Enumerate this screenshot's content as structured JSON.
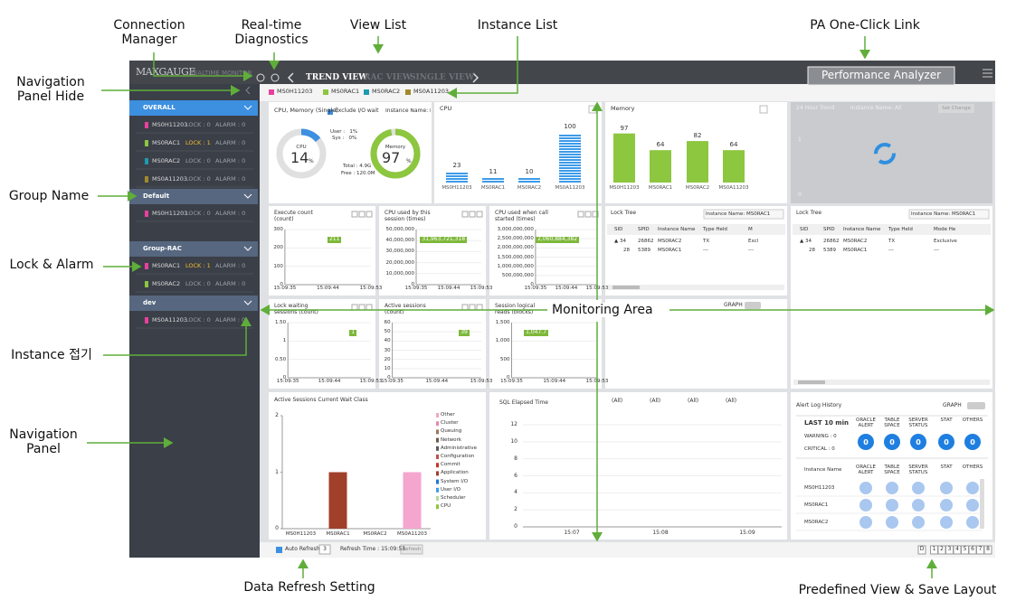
{
  "annotations": {
    "connection_manager": "Connection Manager",
    "realtime_diagnostics": "Real-time Diagnostics",
    "view_list": "View List",
    "instance_list": "Instance List",
    "pa_link": "PA One-Click Link",
    "nav_hide": "Navigation Panel Hide",
    "group_name": "Group Name",
    "lock_alarm": "Lock & Alarm",
    "instance_fold": "Instance 접기",
    "nav_panel": "Navigation Panel",
    "monitoring_area": "Monitoring Area",
    "refresh": "Data Refresh Setting",
    "predefined": "Predefined View & Save Layout"
  },
  "header": {
    "brand": "MAXGAUGE",
    "subtitle": "REALTIME MONITOR",
    "tabs": [
      "TREND VIEW",
      "RAC VIEW",
      "SINGLE VIEW"
    ],
    "pa_button": "Performance Analyzer"
  },
  "instances": [
    {
      "name": "MS0H11203",
      "color": "#e8409e"
    },
    {
      "name": "MS0RAC1",
      "color": "#8dc63f"
    },
    {
      "name": "MS0RAC2",
      "color": "#1e9bb0"
    },
    {
      "name": "MS0A11203",
      "color": "#a08a2b"
    }
  ],
  "nav": {
    "groups": [
      {
        "name": "OVERALL",
        "color": "#3d8fe0",
        "items": [
          {
            "name": "MS0H11203",
            "color": "#e8409e",
            "lock": "LOCK : 0",
            "alarm": "ALARM : 0",
            "highlight": false
          },
          {
            "name": "MS0RAC1",
            "color": "#8dc63f",
            "lock": "LOCK : 1",
            "alarm": "ALARM : 0",
            "highlight": true
          },
          {
            "name": "MS0RAC2",
            "color": "#1e9bb0",
            "lock": "LOCK : 0",
            "alarm": "ALARM : 0",
            "highlight": false
          },
          {
            "name": "MS0A11203",
            "color": "#a08a2b",
            "lock": "LOCK : 0",
            "alarm": "ALARM : 0",
            "highlight": false
          }
        ]
      },
      {
        "name": "Default",
        "color": "#56677f",
        "items": [
          {
            "name": "MS0H11203",
            "color": "#e8409e",
            "lock": "LOCK : 0",
            "alarm": "ALARM : 0",
            "highlight": false
          }
        ]
      },
      {
        "name": "Group-RAC",
        "color": "#56677f",
        "items": [
          {
            "name": "MS0RAC1",
            "color": "#e8409e",
            "lock": "LOCK : 1",
            "alarm": "ALARM : 0",
            "highlight": true
          },
          {
            "name": "MS0RAC2",
            "color": "#8dc63f",
            "lock": "LOCK : 0",
            "alarm": "ALARM : 0",
            "highlight": false
          }
        ]
      },
      {
        "name": "dev",
        "color": "#56677f",
        "items": [
          {
            "name": "MS0A11203",
            "color": "#e8409e",
            "lock": "LOCK : 0",
            "alarm": "ALARM : 0",
            "highlight": false
          }
        ]
      }
    ]
  },
  "cpu_memory": {
    "title": "CPU, Memory (Single)",
    "exclude": "Exclude I/O wait",
    "instance": "Instance Name: M",
    "cpu_label": "CPU",
    "cpu_value": 14,
    "memory_label": "Memory",
    "memory_value": 97,
    "unit": "%",
    "user": "User :   1%",
    "sys": "Sys :   0%",
    "total": "Total : 4.9G",
    "free": "Free : 120.0M"
  },
  "cpu_bars": {
    "title": "CPU",
    "categories": [
      "MS0H11203",
      "MS0RAC1",
      "MS0RAC2",
      "MS0A11203"
    ],
    "values": [
      23,
      11,
      10,
      100
    ],
    "color": "#3d9be9"
  },
  "memory_bars": {
    "title": "Memory",
    "categories": [
      "MS0H11203",
      "MS0RAC1",
      "MS0RAC2",
      "MS0A11203"
    ],
    "values": [
      97,
      64,
      82,
      64
    ],
    "color": "#8dc63f"
  },
  "trend24": {
    "title": "24 Hour Trend",
    "instance": "Instance Name: All",
    "button": "Set Change",
    "yticks": [
      "1",
      "0"
    ]
  },
  "small_charts": [
    {
      "title": "Execute count (count)",
      "yticks": [
        "300",
        "200",
        "100",
        "0"
      ],
      "xticks": [
        "15:09:35",
        "15:09:44",
        "15:09:53"
      ],
      "badge": "211"
    },
    {
      "title": "CPU used by this session (times)",
      "yticks": [
        "50,000,000",
        "40,000,000",
        "30,000,000",
        "20,000,000",
        "10,000,000",
        "0"
      ],
      "xticks": [
        "15:09:35",
        "15:09:44",
        "15:09:53"
      ],
      "badge": "31,963,721,318"
    },
    {
      "title": "CPU used when call started (times)",
      "yticks": [
        "3,000,000,000",
        "2,500,000,000",
        "2,000,000,000",
        "1,500,000,000",
        "1,000,000,000",
        "500,000,000",
        "0"
      ],
      "xticks": [
        "15:09:35",
        "15:09:44",
        "15:09:53"
      ],
      "badge": "2,060,884,382"
    },
    {
      "title": "Lock waiting sessions (count)",
      "yticks": [
        "1.50",
        "1",
        "0.50",
        "0"
      ],
      "xticks": [
        "15:09:35",
        "15:09:44",
        "15:09:53"
      ],
      "badge": "1"
    },
    {
      "title": "Active sessions (count)",
      "yticks": [
        "60",
        "50",
        "40",
        "30",
        "20",
        "10",
        "0"
      ],
      "xticks": [
        "15:09:35",
        "15:09:44",
        "15:09:53"
      ],
      "badge": "39"
    },
    {
      "title": "Session logical reads (blocks)",
      "yticks": [
        "1,500",
        "1,000",
        "500",
        "0"
      ],
      "xticks": [
        "15:09:35",
        "15:09:44",
        "15:09:53"
      ],
      "badge": "1,047.7"
    }
  ],
  "lock_trees": [
    {
      "title": "Lock Tree",
      "instance": "Instance Name: MS0RAC1",
      "columns": [
        "SID",
        "SPID",
        "Instance Name",
        "Type Held",
        "M"
      ],
      "rows": [
        [
          "▲ 34",
          "26862",
          "MS0RAC2",
          "TX",
          "Excl"
        ],
        [
          "28",
          "5389",
          "MS0RAC1",
          "---",
          "---"
        ]
      ]
    },
    {
      "title": "Lock Tree",
      "instance": "Instance Name: MS0RAC1",
      "columns": [
        "SID",
        "SPID",
        "Instance Name",
        "Type Held",
        "Mode He"
      ],
      "rows": [
        [
          "▲ 34",
          "26862",
          "MS0RAC2",
          "TX",
          "Exclusive"
        ],
        [
          "28",
          "5389",
          "MS0RAC1",
          "---",
          "---"
        ]
      ]
    }
  ],
  "graph_toggle": "GRAPH",
  "wait_class": {
    "title": "Active Sessions Current Wait Class",
    "ylim": [
      0,
      2
    ],
    "yticks": [
      0,
      1,
      2
    ],
    "categories": [
      "MS0H11203",
      "MS0RAC1",
      "MS0RAC2",
      "MS0A11203"
    ],
    "values": [
      0,
      1,
      0,
      1
    ],
    "colors": [
      "#e8409e",
      "#a0402a",
      "#1e9bb0",
      "#f4a6cf"
    ],
    "legend": [
      {
        "name": "Other",
        "color": "#f2a6c8"
      },
      {
        "name": "Cluster",
        "color": "#e88ab0"
      },
      {
        "name": "Queuing",
        "color": "#9b7a5a"
      },
      {
        "name": "Network",
        "color": "#6b5a4a"
      },
      {
        "name": "Administrative",
        "color": "#5a5a5a"
      },
      {
        "name": "Configuration",
        "color": "#c0504d"
      },
      {
        "name": "Commit",
        "color": "#c0392b"
      },
      {
        "name": "Application",
        "color": "#a0402a"
      },
      {
        "name": "System I/O",
        "color": "#1f77d0"
      },
      {
        "name": "User I/O",
        "color": "#3d9be9"
      },
      {
        "name": "Scheduler",
        "color": "#b5d99c"
      },
      {
        "name": "CPU",
        "color": "#8dc63f"
      }
    ]
  },
  "sql_elapsed": {
    "title": "SQL Elapsed Time",
    "filters": [
      "(All)",
      "(All)",
      "(All)",
      "(All)"
    ],
    "yticks": [
      "12",
      "10",
      "8",
      "6",
      "4",
      "2",
      "0"
    ],
    "xticks": [
      "15:07",
      "15:08",
      "15:09"
    ]
  },
  "alert_log": {
    "title": "Alert Log History",
    "graph": "GRAPH",
    "period": "LAST 10 min",
    "columns": [
      "ORACLE ALERT",
      "TABLE SPACE",
      "SERVER STATUS",
      "STAT",
      "OTHERS"
    ],
    "warning": "WARNING : 0",
    "critical": "CRITICAL : 0",
    "counts": [
      "0",
      "0",
      "0",
      "0",
      "0"
    ],
    "instance_header": "Instance Name",
    "rows": [
      "MS0H11203",
      "MS0RAC1",
      "MS0RAC2"
    ]
  },
  "footer": {
    "auto_refresh": "Auto Refresh",
    "interval": "3",
    "refresh_time": "Refresh Time : 15:09:53",
    "refresh_button": "Refresh",
    "layouts": [
      "D",
      "1",
      "2",
      "3",
      "4",
      "5",
      "6",
      "7",
      "8"
    ]
  }
}
